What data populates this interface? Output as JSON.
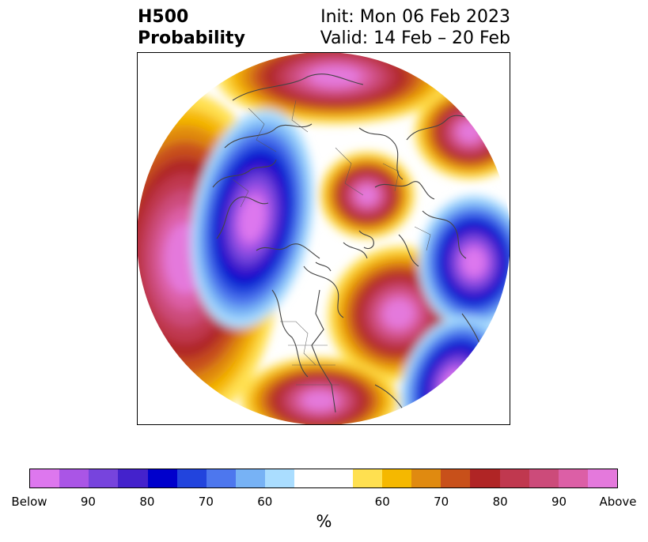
{
  "header": {
    "title_line1": "H500",
    "title_line2": "Probability",
    "init_line": "Init: Mon 06 Feb 2023",
    "valid_line": "Valid: 14 Feb – 20 Feb"
  },
  "colorbar": {
    "colors": [
      "#dd77ee",
      "#aa55e6",
      "#7744dd",
      "#4422cc",
      "#0000cc",
      "#2244dd",
      "#4d77ee",
      "#77b2f5",
      "#aaddff",
      "#ffffff",
      "#ffe050",
      "#f5b800",
      "#e08a10",
      "#c8501a",
      "#b02525",
      "#c0384f",
      "#cc4b7a",
      "#dc5fa6",
      "#e479dc"
    ],
    "ticks": [
      "Below",
      "90",
      "80",
      "70",
      "60",
      "60",
      "70",
      "80",
      "90",
      "Above"
    ],
    "unit": "%"
  },
  "map": {
    "projection": "north-polar-stereographic",
    "anomaly_centers": [
      {
        "sign": "below",
        "max_percent": 90,
        "region": "Siberia / Eastern Asia"
      },
      {
        "sign": "below",
        "max_percent": 90,
        "region": "Scandinavia / Northwestern Europe"
      },
      {
        "sign": "below",
        "max_percent": 80,
        "region": "Western North America"
      },
      {
        "sign": "above",
        "max_percent": 90,
        "region": "North Pacific"
      },
      {
        "sign": "above",
        "max_percent": 90,
        "region": "North Atlantic / Greenland"
      },
      {
        "sign": "above",
        "max_percent": 80,
        "region": "Central Asia"
      },
      {
        "sign": "above",
        "max_percent": 80,
        "region": "Eastern United States"
      }
    ]
  }
}
